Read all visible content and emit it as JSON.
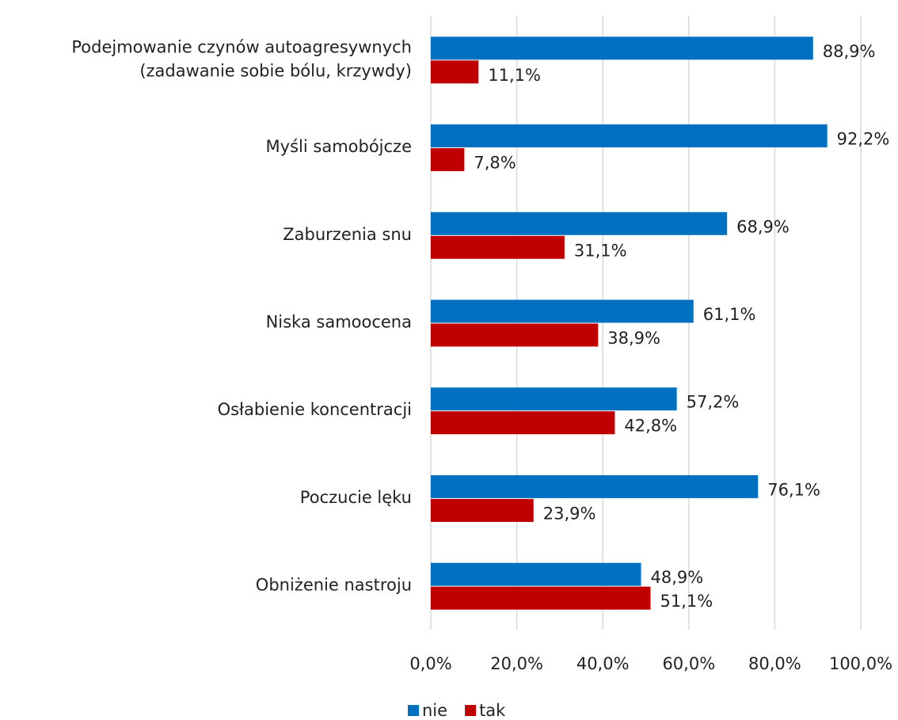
{
  "chart_data": {
    "type": "barh",
    "categories": [
      "Podejmowanie czynów autoagresywnych\n(zadawanie sobie bólu, krzywdy)",
      "Myśli samobójcze",
      "Zaburzenia snu",
      "Niska samoocena",
      "Osłabienie koncentracji",
      "Poczucie lęku",
      "Obniżenie nastroju"
    ],
    "series": [
      {
        "name": "nie",
        "color": "#0070c0",
        "values": [
          88.9,
          92.2,
          68.9,
          61.1,
          57.2,
          76.1,
          48.9
        ],
        "value_labels": [
          "88,9%",
          "92,2%",
          "68,9%",
          "61,1%",
          "57,2%",
          "76,1%",
          "48,9%"
        ]
      },
      {
        "name": "tak",
        "color": "#c00000",
        "values": [
          11.1,
          7.8,
          31.1,
          38.9,
          42.8,
          23.9,
          51.1
        ],
        "value_labels": [
          "11,1%",
          "7,8%",
          "31,1%",
          "38,9%",
          "42,8%",
          "23,9%",
          "51,1%"
        ]
      }
    ],
    "xlim": [
      0,
      100
    ],
    "xticks": [
      {
        "value": 0,
        "label": "0,0%"
      },
      {
        "value": 20,
        "label": "20,0%"
      },
      {
        "value": 40,
        "label": "40,0%"
      },
      {
        "value": 60,
        "label": "60,0%"
      },
      {
        "value": 80,
        "label": "80,0%"
      },
      {
        "value": 100,
        "label": "100,0%"
      }
    ],
    "grid": true,
    "legend": "bottom"
  }
}
